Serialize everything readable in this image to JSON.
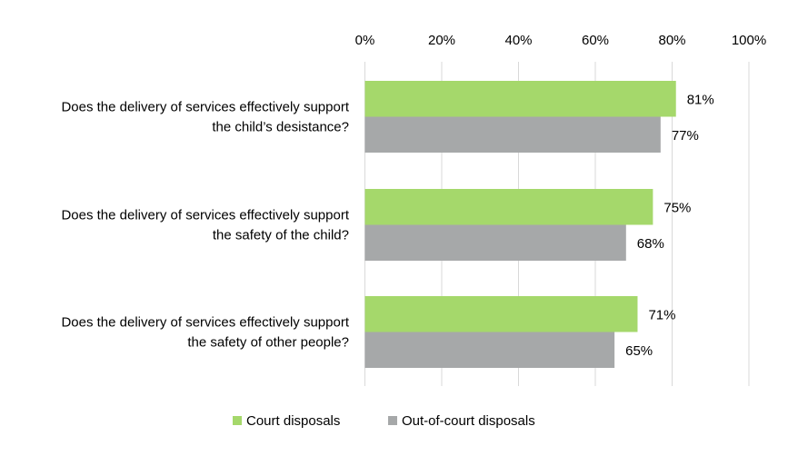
{
  "chart_data": {
    "type": "bar",
    "orientation": "horizontal",
    "categories": [
      [
        "Does the delivery of services effectively support",
        "the child’s desistance?"
      ],
      [
        "Does the delivery of services effectively support",
        "the safety of the child?"
      ],
      [
        "Does the delivery of services effectively support",
        "the safety of other people?"
      ]
    ],
    "series": [
      {
        "name": "Court disposals",
        "values": [
          81,
          75,
          71
        ],
        "color": "#a5d86b"
      },
      {
        "name": "Out-of-court disposals",
        "values": [
          77,
          68,
          65
        ],
        "color": "#a6a8a9"
      }
    ],
    "data_labels": [
      [
        "81%",
        "75%",
        "71%"
      ],
      [
        "77%",
        "68%",
        "65%"
      ]
    ],
    "xlim": [
      0,
      100
    ],
    "xticks": [
      "0%",
      "20%",
      "40%",
      "60%",
      "80%",
      "100%"
    ],
    "xaxis_position": "top",
    "grid": true,
    "gridline_color": "#d9d9d9",
    "legend_position": "bottom"
  }
}
